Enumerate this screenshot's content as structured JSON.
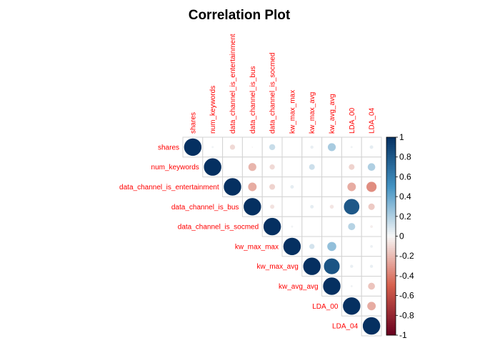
{
  "chart_data": {
    "type": "heatmap",
    "subtype": "upper-triangular correlation plot (circles)",
    "title": "Correlation Plot",
    "variables": [
      "shares",
      "num_keywords",
      "data_channel_is_entertainment",
      "data_channel_is_bus",
      "data_channel_is_socmed",
      "kw_max_max",
      "kw_max_avg",
      "kw_avg_avg",
      "LDA_00",
      "LDA_04"
    ],
    "matrix": [
      [
        1.0,
        0.02,
        -0.1,
        -0.01,
        0.13,
        0.0,
        0.04,
        0.22,
        0.02,
        0.05
      ],
      [
        null,
        1.0,
        0.0,
        -0.22,
        -0.1,
        0.0,
        0.12,
        0.0,
        -0.12,
        0.2
      ],
      [
        null,
        null,
        1.0,
        -0.25,
        -0.12,
        0.05,
        0.0,
        0.0,
        -0.25,
        -0.35
      ],
      [
        null,
        null,
        null,
        1.0,
        -0.07,
        0.0,
        0.05,
        -0.06,
        0.8,
        -0.15
      ],
      [
        null,
        null,
        null,
        null,
        1.0,
        0.02,
        0.0,
        0.0,
        0.18,
        -0.03
      ],
      [
        null,
        null,
        null,
        null,
        null,
        1.0,
        0.1,
        0.28,
        0.0,
        0.03
      ],
      [
        null,
        null,
        null,
        null,
        null,
        null,
        1.0,
        0.82,
        0.04,
        0.04
      ],
      [
        null,
        null,
        null,
        null,
        null,
        null,
        null,
        1.0,
        0.02,
        -0.17
      ],
      [
        null,
        null,
        null,
        null,
        null,
        null,
        null,
        null,
        1.0,
        -0.25
      ],
      [
        null,
        null,
        null,
        null,
        null,
        null,
        null,
        null,
        null,
        1.0
      ]
    ],
    "colorbar": {
      "ticks": [
        "1",
        "0.8",
        "0.6",
        "0.4",
        "0.2",
        "0",
        "-0.2",
        "-0.4",
        "-0.6",
        "-0.8",
        "-1"
      ],
      "range": [
        -1,
        1
      ]
    },
    "colors": {
      "negative_end": "#67001f",
      "mid_negative": "#d6604d",
      "neutral": "#f7f7f7",
      "mid_positive": "#4393c3",
      "positive_end": "#053061",
      "label_color": "#ff0000",
      "grid_color": "#d3d3d3"
    }
  }
}
